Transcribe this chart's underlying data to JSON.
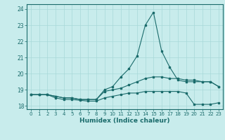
{
  "title": "",
  "xlabel": "Humidex (Indice chaleur)",
  "bg_color": "#c8ecec",
  "grid_color": "#a8d8d8",
  "line_color": "#1a6b6b",
  "xlim": [
    -0.5,
    23.5
  ],
  "ylim": [
    17.8,
    24.3
  ],
  "yticks": [
    18,
    19,
    20,
    21,
    22,
    23,
    24
  ],
  "xticks": [
    0,
    1,
    2,
    3,
    4,
    5,
    6,
    7,
    8,
    9,
    10,
    11,
    12,
    13,
    14,
    15,
    16,
    17,
    18,
    19,
    20,
    21,
    22,
    23
  ],
  "series": [
    [
      18.7,
      18.7,
      18.7,
      18.6,
      18.5,
      18.5,
      18.4,
      18.4,
      18.4,
      19.0,
      19.2,
      19.8,
      20.3,
      21.1,
      23.0,
      23.8,
      21.4,
      20.4,
      19.6,
      19.5,
      19.5,
      19.5,
      19.5,
      19.2
    ],
    [
      18.7,
      18.7,
      18.7,
      18.6,
      18.5,
      18.5,
      18.4,
      18.4,
      18.4,
      18.9,
      19.0,
      19.1,
      19.3,
      19.5,
      19.7,
      19.8,
      19.8,
      19.7,
      19.7,
      19.6,
      19.6,
      19.5,
      19.5,
      19.2
    ],
    [
      18.7,
      18.7,
      18.7,
      18.5,
      18.4,
      18.4,
      18.35,
      18.3,
      18.3,
      18.5,
      18.6,
      18.7,
      18.8,
      18.8,
      18.9,
      18.9,
      18.9,
      18.9,
      18.9,
      18.8,
      18.1,
      18.1,
      18.1,
      18.2
    ]
  ]
}
